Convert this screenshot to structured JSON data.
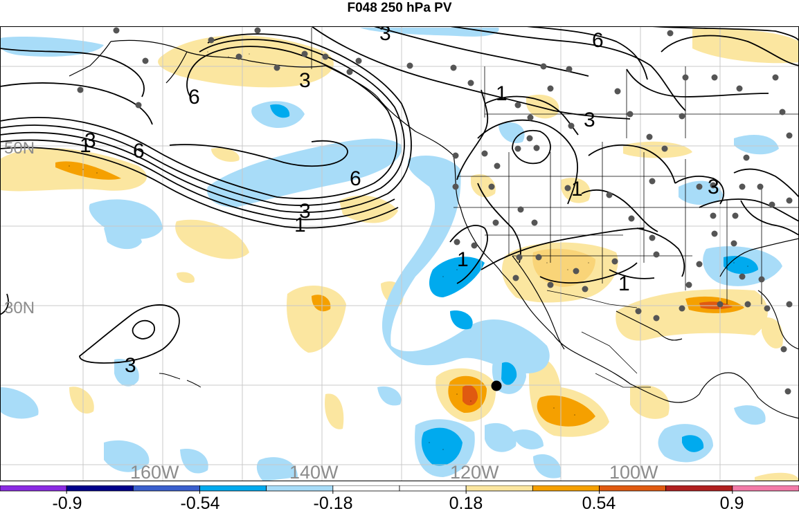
{
  "title": "F048 250 hPa PV",
  "map": {
    "lon_labels": [
      "160W",
      "140W",
      "120W",
      "100W"
    ],
    "lat_labels": [
      "50N",
      "30N"
    ],
    "contour_labels": [
      "3",
      "6",
      "3",
      "1",
      "3",
      "6",
      "1",
      "6",
      "3",
      "3",
      "6",
      "1",
      "1",
      "1",
      "3",
      "1",
      "3",
      "1",
      "1"
    ]
  },
  "colorbar": {
    "tick_labels": [
      "-0.9",
      "-0.54",
      "-0.18",
      "0.18",
      "0.54",
      "0.9"
    ],
    "colors": [
      "#8a2be2",
      "#00008b",
      "#3a5fcd",
      "#00aaee",
      "#a8dcf8",
      "#ffffff",
      "#ffffff",
      "#fbe6a0",
      "#f5a000",
      "#e05a10",
      "#b02020",
      "#f27aa8"
    ]
  }
}
